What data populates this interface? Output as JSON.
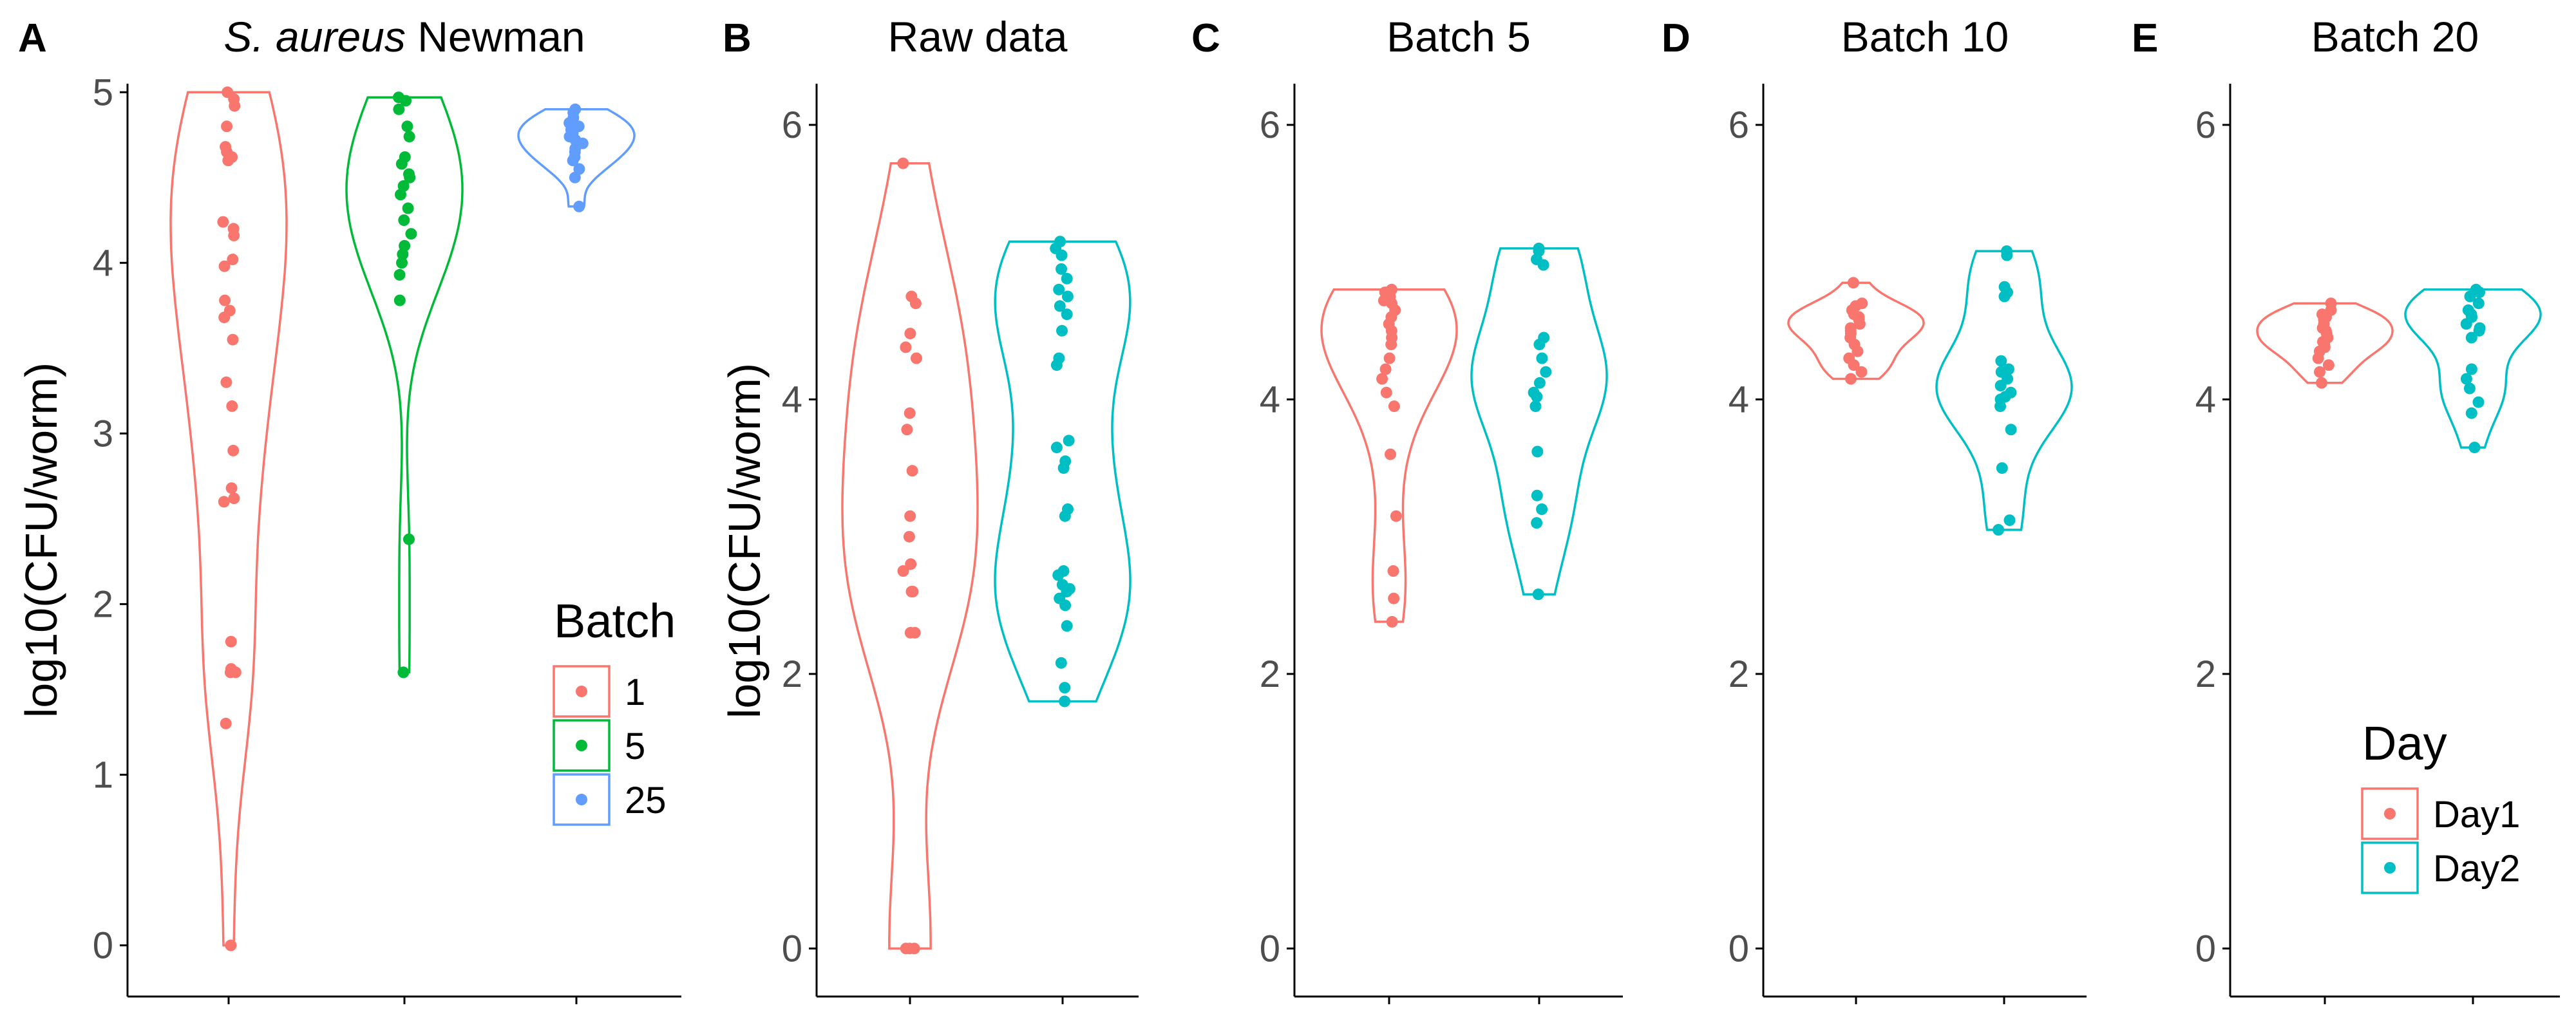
{
  "figure": {
    "panels_order": [
      "A",
      "B",
      "C",
      "D",
      "E"
    ]
  },
  "colors": {
    "batch_1": "#F8766D",
    "batch_5": "#00BA38",
    "batch_25": "#619CFF",
    "day1": "#F8766D",
    "day2": "#00BFC4",
    "axis": "#000000",
    "tick_label": "#4d4d4d"
  },
  "legends": {
    "batch": {
      "title": "Batch",
      "position": "inside panel A, lower-right",
      "entries": [
        "1",
        "5",
        "25"
      ]
    },
    "day": {
      "title": "Day",
      "position": "inside panel E, lower-right",
      "entries": [
        "Day1",
        "Day2"
      ]
    }
  },
  "chart_data": [
    {
      "panel_letter": "A",
      "type": "violin",
      "title": "S. aureus Newman",
      "title_italic_part": "S. aureus",
      "title_plain_part": "Newman",
      "ylabel": "log10(CFU/worm)",
      "xlabel": "",
      "ylim": [
        -0.3,
        5.05
      ],
      "yticks": [
        0,
        1,
        2,
        3,
        4,
        5
      ],
      "grid": false,
      "legend": "batch",
      "series": [
        {
          "name": "1",
          "color_key": "batch_1",
          "values": [
            0.0,
            1.3,
            1.6,
            1.6,
            1.62,
            1.78,
            2.6,
            2.62,
            2.68,
            2.9,
            3.16,
            3.3,
            3.55,
            3.68,
            3.72,
            3.78,
            3.98,
            4.02,
            4.16,
            4.2,
            4.24,
            4.6,
            4.62,
            4.65,
            4.68,
            4.8,
            4.92,
            4.96,
            5.0
          ]
        },
        {
          "name": "5",
          "color_key": "batch_5",
          "values": [
            1.6,
            2.38,
            3.78,
            3.93,
            4.0,
            4.05,
            4.1,
            4.17,
            4.25,
            4.32,
            4.4,
            4.45,
            4.5,
            4.52,
            4.58,
            4.62,
            4.74,
            4.8,
            4.9,
            4.95,
            4.97
          ]
        },
        {
          "name": "25",
          "color_key": "batch_25",
          "values": [
            4.33,
            4.5,
            4.55,
            4.6,
            4.62,
            4.65,
            4.67,
            4.7,
            4.72,
            4.74,
            4.76,
            4.78,
            4.8,
            4.82,
            4.85,
            4.88,
            4.9
          ]
        }
      ]
    },
    {
      "panel_letter": "B",
      "type": "violin",
      "title": "Raw data",
      "ylabel": "log10(CFU/worm)",
      "xlabel": "",
      "ylim": [
        -0.35,
        6.3
      ],
      "yticks": [
        0,
        2,
        4,
        6
      ],
      "grid": false,
      "series": [
        {
          "name": "Day1",
          "color_key": "day1",
          "values": [
            0.0,
            0.0,
            0.0,
            2.3,
            2.3,
            2.6,
            2.6,
            2.75,
            2.8,
            3.0,
            3.15,
            3.48,
            3.78,
            3.9,
            4.3,
            4.38,
            4.48,
            4.7,
            4.75,
            5.72
          ]
        },
        {
          "name": "Day2",
          "color_key": "day2",
          "values": [
            1.8,
            1.9,
            2.08,
            2.35,
            2.5,
            2.55,
            2.6,
            2.62,
            2.65,
            2.72,
            2.75,
            3.15,
            3.2,
            3.5,
            3.55,
            3.65,
            3.7,
            4.25,
            4.3,
            4.5,
            4.62,
            4.68,
            4.75,
            4.8,
            4.88,
            4.95,
            5.05,
            5.1,
            5.15
          ]
        }
      ]
    },
    {
      "panel_letter": "C",
      "type": "violin",
      "title": "Batch 5",
      "ylabel": "",
      "xlabel": "",
      "ylim": [
        -0.35,
        6.3
      ],
      "yticks": [
        0,
        2,
        4,
        6
      ],
      "grid": false,
      "series": [
        {
          "name": "Day1",
          "color_key": "day1",
          "values": [
            2.38,
            2.55,
            2.75,
            3.15,
            3.6,
            3.95,
            4.05,
            4.15,
            4.22,
            4.3,
            4.4,
            4.45,
            4.5,
            4.55,
            4.6,
            4.65,
            4.7,
            4.72,
            4.75,
            4.78,
            4.8
          ]
        },
        {
          "name": "Day2",
          "color_key": "day2",
          "values": [
            2.58,
            3.1,
            3.2,
            3.3,
            3.62,
            3.95,
            4.02,
            4.05,
            4.12,
            4.2,
            4.3,
            4.4,
            4.45,
            4.98,
            5.02,
            5.08,
            5.1
          ]
        }
      ]
    },
    {
      "panel_letter": "D",
      "type": "violin",
      "title": "Batch 10",
      "ylabel": "",
      "xlabel": "",
      "ylim": [
        -0.35,
        6.3
      ],
      "yticks": [
        0,
        2,
        4,
        6
      ],
      "grid": false,
      "series": [
        {
          "name": "Day1",
          "color_key": "day1",
          "values": [
            4.15,
            4.2,
            4.25,
            4.3,
            4.35,
            4.4,
            4.45,
            4.48,
            4.5,
            4.52,
            4.55,
            4.58,
            4.6,
            4.62,
            4.65,
            4.68,
            4.7,
            4.85
          ]
        },
        {
          "name": "Day2",
          "color_key": "day2",
          "values": [
            3.05,
            3.12,
            3.5,
            3.78,
            3.95,
            4.0,
            4.02,
            4.05,
            4.1,
            4.15,
            4.2,
            4.22,
            4.28,
            4.75,
            4.78,
            4.82,
            5.05,
            5.08
          ]
        }
      ]
    },
    {
      "panel_letter": "E",
      "type": "violin",
      "title": "Batch 20",
      "ylabel": "",
      "xlabel": "",
      "ylim": [
        -0.35,
        6.3
      ],
      "yticks": [
        0,
        2,
        4,
        6
      ],
      "grid": false,
      "legend": "day",
      "series": [
        {
          "name": "Day1",
          "color_key": "day1",
          "values": [
            4.12,
            4.2,
            4.25,
            4.3,
            4.35,
            4.38,
            4.4,
            4.42,
            4.45,
            4.48,
            4.5,
            4.52,
            4.55,
            4.58,
            4.6,
            4.62,
            4.65,
            4.7
          ]
        },
        {
          "name": "Day2",
          "color_key": "day2",
          "values": [
            3.65,
            3.9,
            3.98,
            4.08,
            4.15,
            4.22,
            4.45,
            4.5,
            4.52,
            4.55,
            4.6,
            4.62,
            4.65,
            4.7,
            4.75,
            4.78,
            4.8
          ]
        }
      ]
    }
  ]
}
